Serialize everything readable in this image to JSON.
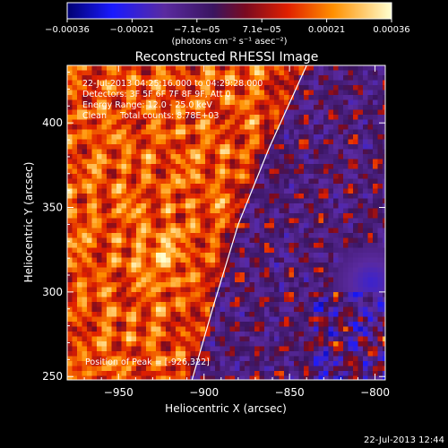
{
  "chart_data": {
    "type": "heatmap",
    "title": "Reconstructed RHESSI Image",
    "xlabel": "Heliocentric X (arcsec)",
    "ylabel": "Heliocentric Y (arcsec)",
    "xlim": [
      -980,
      -794
    ],
    "ylim": [
      248,
      434
    ],
    "x_ticks": [
      -950,
      -900,
      -850,
      -800
    ],
    "y_ticks": [
      250,
      300,
      350,
      400
    ],
    "x_tick_labels": [
      "−950",
      "−900",
      "−850",
      "−800"
    ],
    "y_tick_labels": [
      "250",
      "300",
      "350",
      "400"
    ],
    "colorbar": {
      "range": [
        -0.00036,
        0.00036
      ],
      "tick_labels": [
        "−0.00036",
        "−0.00021",
        "−7.1e−05",
        "7.1e−05",
        "0.00021",
        "0.00036"
      ],
      "unit_label": "(photons cm⁻² s⁻¹ asec⁻²)"
    },
    "annotations": [
      "22-Jul-2013 04:25:16.000 to 04:29:28.000",
      "Detectors: 3F 5F 6F 7F 8F 9F, Att 0",
      "Energy Range: 12.0 - 25.0 keV",
      "Clean     Total counts: 8.78E+03"
    ],
    "peak_label": "Position of Peak = [-926,322]",
    "peak": [
      -926,
      322
    ],
    "limb_curve": [
      [
        -907,
        248
      ],
      [
        -895,
        290
      ],
      [
        -880,
        340
      ],
      [
        -862,
        385
      ],
      [
        -840,
        434
      ]
    ],
    "timestamp": "22-Jul-2013 12:44"
  },
  "colors": {
    "background": "#000000",
    "foreground": "#ffffff",
    "colormap": [
      "#000080",
      "#2020ff",
      "#7030a0",
      "#4a1a70",
      "#c00000",
      "#ff4000",
      "#ffa000",
      "#ffff80"
    ]
  }
}
